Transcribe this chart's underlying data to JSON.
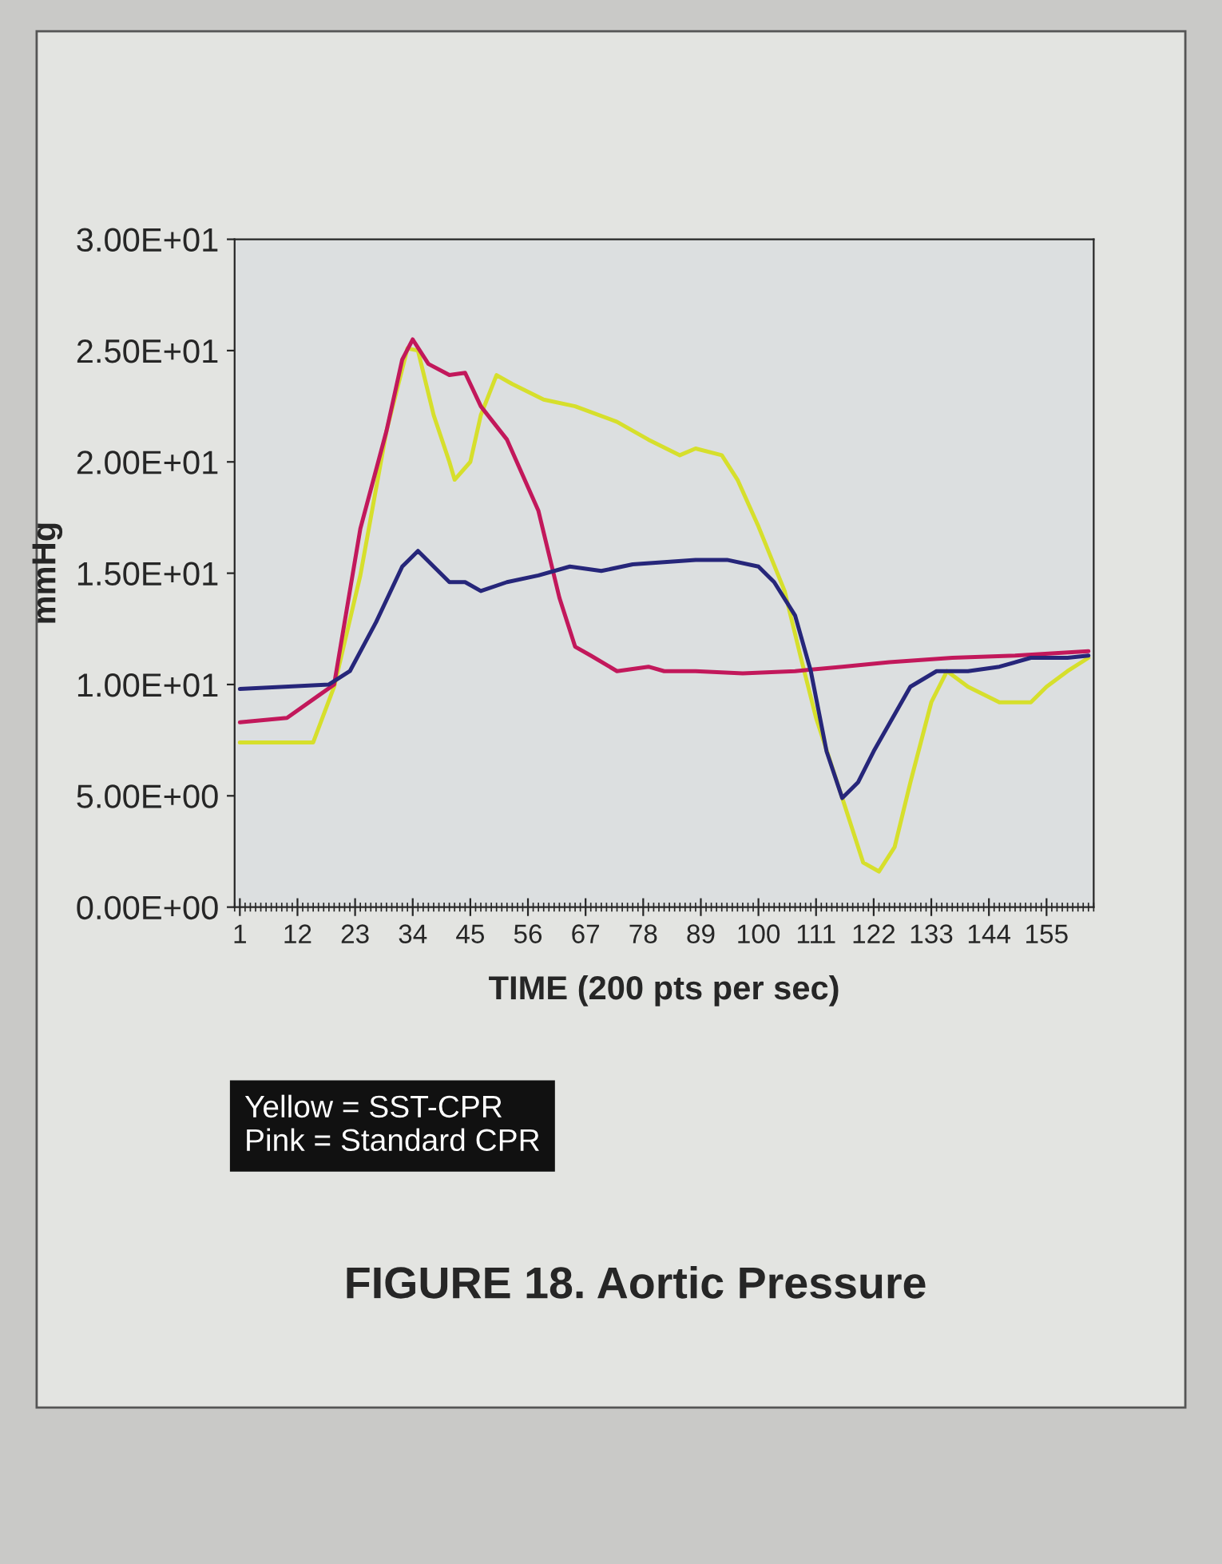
{
  "chart_data": {
    "type": "line",
    "title": "FIGURE 18. Aortic Pressure",
    "xlabel": "TIME (200 pts per sec)",
    "ylabel": "mmHg",
    "annotations": [
      "Yellow = SST-CPR",
      "Pink = Standard CPR"
    ],
    "xlim": [
      0,
      164
    ],
    "xticks": [
      1,
      12,
      23,
      34,
      45,
      56,
      67,
      78,
      89,
      100,
      111,
      122,
      133,
      144,
      155
    ],
    "ylim": [
      0,
      30
    ],
    "yticks": [
      {
        "value": 0,
        "label": "0.00E+00"
      },
      {
        "value": 5,
        "label": "5.00E+00"
      },
      {
        "value": 10,
        "label": "1.00E+01"
      },
      {
        "value": 15,
        "label": "1.50E+01"
      },
      {
        "value": 20,
        "label": "2.00E+01"
      },
      {
        "value": 25,
        "label": "2.50E+01"
      },
      {
        "value": 30,
        "label": "3.00E+01"
      }
    ],
    "grid": false,
    "legend": false,
    "marker": "none",
    "line_style": "solid",
    "series": [
      {
        "color": "#d6df2c",
        "x": [
          1,
          15,
          19,
          24,
          29,
          33,
          35,
          38,
          41,
          42,
          45,
          47,
          50,
          53,
          59,
          65,
          73,
          79,
          85,
          88,
          93,
          96,
          100,
          105,
          108,
          111,
          116,
          120,
          123,
          126,
          129,
          133,
          136,
          140,
          146,
          152,
          155,
          159,
          163
        ],
        "values": [
          7.4,
          7.4,
          9.9,
          14.9,
          21.4,
          25.1,
          25.0,
          22.1,
          20.0,
          19.2,
          20.0,
          22.1,
          23.9,
          23.5,
          22.8,
          22.5,
          21.8,
          21.0,
          20.3,
          20.6,
          20.3,
          19.2,
          17.1,
          14.2,
          11.3,
          8.5,
          4.9,
          2.0,
          1.6,
          2.7,
          5.6,
          9.2,
          10.6,
          9.9,
          9.2,
          9.2,
          9.9,
          10.6,
          11.2
        ]
      },
      {
        "color": "#c2185b",
        "x": [
          1,
          10,
          16,
          19,
          24,
          29,
          32,
          34,
          37,
          41,
          44,
          47,
          52,
          58,
          62,
          65,
          68,
          73,
          79,
          82,
          88,
          97,
          107,
          116,
          125,
          137,
          149,
          163
        ],
        "values": [
          8.3,
          8.5,
          9.5,
          10.0,
          17.0,
          21.4,
          24.6,
          25.5,
          24.4,
          23.9,
          24.0,
          22.5,
          21.0,
          17.8,
          13.9,
          11.7,
          11.3,
          10.6,
          10.8,
          10.6,
          10.6,
          10.5,
          10.6,
          10.8,
          11.0,
          11.2,
          11.3,
          11.5
        ]
      },
      {
        "color": "#26267a",
        "x": [
          1,
          18,
          22,
          27,
          32,
          35,
          38,
          41,
          44,
          47,
          52,
          58,
          64,
          70,
          76,
          82,
          88,
          94,
          100,
          103,
          107,
          110,
          113,
          116,
          119,
          122,
          129,
          134,
          140,
          146,
          152,
          159,
          163
        ],
        "values": [
          9.8,
          10.0,
          10.6,
          12.8,
          15.3,
          16.0,
          15.3,
          14.6,
          14.6,
          14.2,
          14.6,
          14.9,
          15.3,
          15.1,
          15.4,
          15.5,
          15.6,
          15.6,
          15.3,
          14.6,
          13.1,
          10.6,
          7.0,
          4.9,
          5.6,
          7.0,
          9.9,
          10.6,
          10.6,
          10.8,
          11.2,
          11.2,
          11.3
        ]
      }
    ]
  }
}
